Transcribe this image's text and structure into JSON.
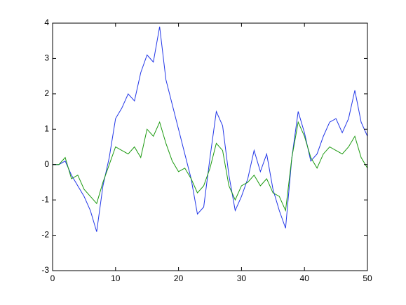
{
  "chart_data": {
    "type": "line",
    "x": [
      0,
      1,
      2,
      3,
      4,
      5,
      6,
      7,
      8,
      9,
      10,
      11,
      12,
      13,
      14,
      15,
      16,
      17,
      18,
      19,
      20,
      21,
      22,
      23,
      24,
      25,
      26,
      27,
      28,
      29,
      30,
      31,
      32,
      33,
      34,
      35,
      36,
      37,
      38,
      39,
      40,
      41,
      42,
      43,
      44,
      45,
      46,
      47,
      48,
      49,
      50
    ],
    "series": [
      {
        "color": "#2136e8",
        "values": [
          0,
          0,
          0.1,
          -0.3,
          -0.6,
          -0.9,
          -1.3,
          -1.9,
          -0.6,
          0.2,
          1.3,
          1.6,
          2.0,
          1.8,
          2.6,
          3.1,
          2.9,
          3.9,
          2.4,
          1.7,
          1.0,
          0.3,
          -0.4,
          -1.4,
          -1.2,
          0.2,
          1.5,
          1.1,
          -0.3,
          -1.3,
          -0.9,
          -0.4,
          0.4,
          -0.2,
          0.3,
          -0.7,
          -1.3,
          -1.8,
          0.2,
          1.5,
          0.9,
          0.1,
          0.3,
          0.8,
          1.2,
          1.3,
          0.9,
          1.3,
          2.1,
          1.2,
          0.8
        ]
      },
      {
        "color": "#1c9a10",
        "values": [
          0,
          0,
          0.2,
          -0.4,
          -0.3,
          -0.7,
          -0.9,
          -1.1,
          -0.5,
          0,
          0.5,
          0.4,
          0.3,
          0.5,
          0.2,
          1.0,
          0.8,
          1.2,
          0.6,
          0.1,
          -0.2,
          -0.1,
          -0.4,
          -0.8,
          -0.6,
          -0.1,
          0.6,
          0.4,
          -0.6,
          -1.0,
          -0.6,
          -0.5,
          -0.3,
          -0.6,
          -0.4,
          -0.8,
          -0.9,
          -1.3,
          0.2,
          1.2,
          0.8,
          0.2,
          -0.1,
          0.3,
          0.5,
          0.4,
          0.3,
          0.5,
          0.8,
          0.2,
          -0.1
        ]
      }
    ],
    "xlim": [
      0,
      50
    ],
    "xticks": [
      0,
      10,
      20,
      30,
      40,
      50
    ],
    "ylim": [
      -3,
      4
    ],
    "yticks": [
      -3,
      -2,
      -1,
      0,
      1,
      2,
      3,
      4
    ]
  }
}
